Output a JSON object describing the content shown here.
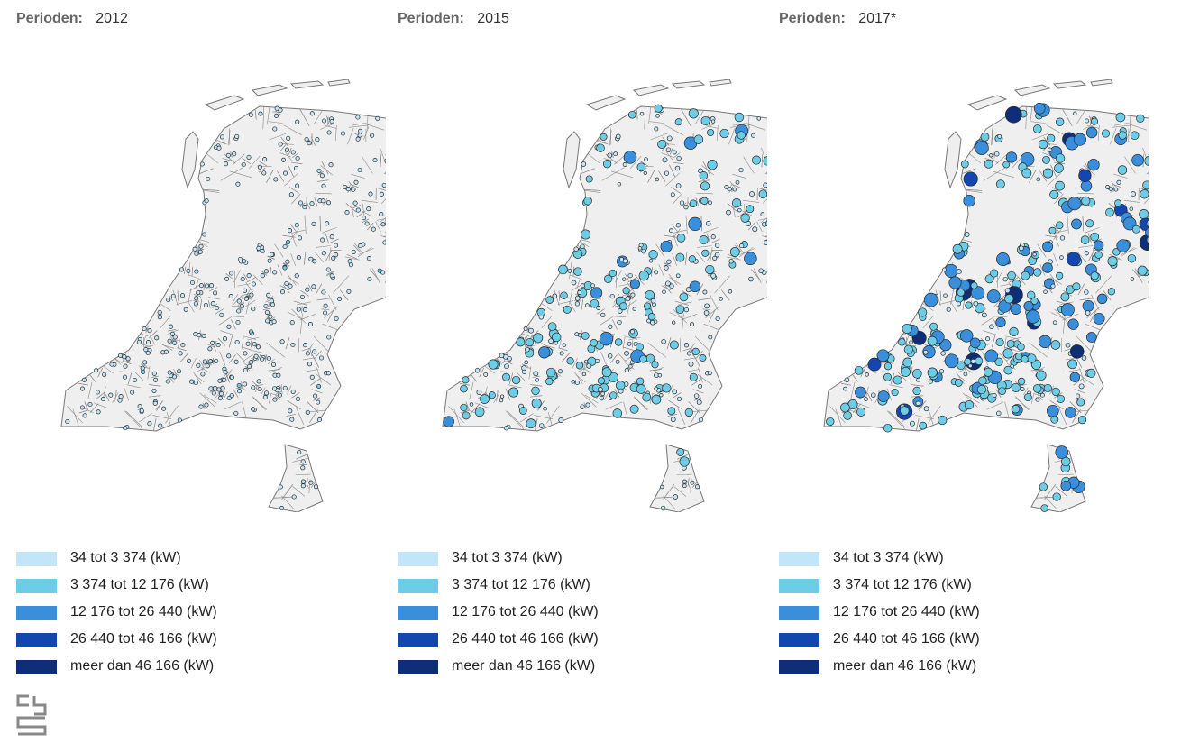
{
  "colors": {
    "land": "#efefef",
    "border": "#8a8a8a",
    "bubble_stroke": "#2a2a2a",
    "classes": [
      "#c2e6f8",
      "#6ecde6",
      "#3a8fdc",
      "#1446b0",
      "#0e2f78"
    ]
  },
  "legend": {
    "items": [
      {
        "label": "34 tot 3 374 (kW)",
        "color": "#c2e6f8"
      },
      {
        "label": "3 374 tot 12 176 (kW)",
        "color": "#6ecde6"
      },
      {
        "label": "12 176 tot 26 440 (kW)",
        "color": "#3a8fdc"
      },
      {
        "label": "26 440 tot 46 166 (kW)",
        "color": "#1446b0"
      },
      {
        "label": "meer dan 46 166 (kW)",
        "color": "#0e2f78"
      }
    ]
  },
  "panels": [
    {
      "label": "Perioden:",
      "period": "2012"
    },
    {
      "label": "Perioden:",
      "period": "2015"
    },
    {
      "label": "Perioden:",
      "period": "2017*"
    }
  ],
  "logo": {
    "icon": "cbs-logo-icon"
  }
}
